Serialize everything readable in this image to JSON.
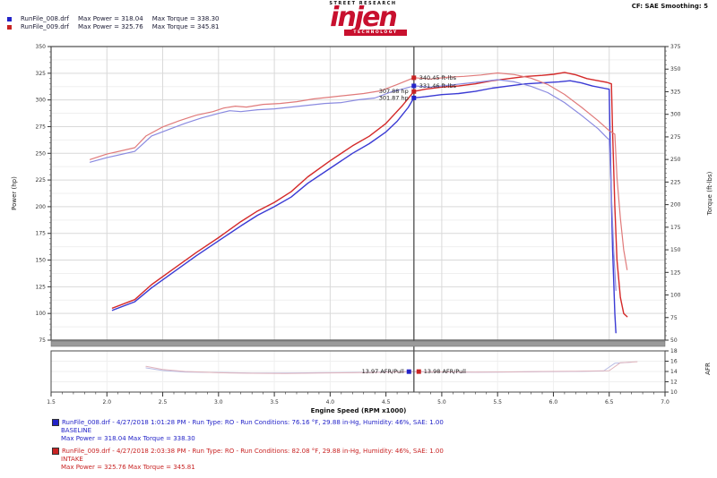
{
  "header": {
    "correction": "CF: SAE   Smoothing: 5",
    "legend": [
      {
        "file": "RunFile_008.drf",
        "power": "Max Power = 318.04",
        "torque": "Max Torque = 338.30",
        "color": "#2323c8"
      },
      {
        "file": "RunFile_009.drf",
        "power": "Max Power = 325.76",
        "torque": "Max Torque = 345.81",
        "color": "#c82323"
      }
    ]
  },
  "logo": {
    "top": "STREET RESEARCH",
    "name": "injen",
    "sub": "TECHNOLOGY"
  },
  "footer": {
    "runs": [
      {
        "color": "#2323c8",
        "line1": "RunFile_008.drf - 4/27/2018 1:01:28 PM - Run Type: RO - Run Conditions: 76.16 °F, 29.88 in-Hg, Humidity: 46%, SAE: 1.00",
        "line2": "BASELINE",
        "line3": "Max Power = 318.04   Max Torque = 338.30"
      },
      {
        "color": "#c82323",
        "line1": "RunFile_009.drf - 4/27/2018 2:03:38 PM - Run Type: RO - Run Conditions: 82.08 °F, 29.88 in-Hg, Humidity: 46%, SAE: 1.00",
        "line2": "INTAKE",
        "line3": "Max Power = 325.76   Max Torque = 345.81"
      }
    ]
  },
  "chart_data": {
    "type": "line",
    "title": "",
    "xlabel": "Engine Speed (RPM x1000)",
    "ylabel_left": "Power (hp)",
    "ylabel_right": "Torque (ft-lbs)",
    "afr_label": "AFR",
    "xlim": [
      1.5,
      7.0
    ],
    "power_lim": [
      75,
      350
    ],
    "torque_lim": [
      50,
      375
    ],
    "afr_lim": [
      10,
      18
    ],
    "x_ticks": [
      1.5,
      2.0,
      2.5,
      3.0,
      3.5,
      4.0,
      4.5,
      5.0,
      5.5,
      6.0,
      6.5,
      7.0
    ],
    "power_ticks": [
      350,
      325,
      300,
      275,
      250,
      225,
      200,
      175,
      150,
      125,
      100,
      75
    ],
    "torque_ticks": [
      375,
      350,
      325,
      300,
      275,
      250,
      225,
      200,
      175,
      150,
      125,
      100,
      75,
      50
    ],
    "afr_ticks": [
      18,
      16,
      14,
      12,
      10
    ],
    "grid": true,
    "legend_position": "top-left",
    "colors": {
      "power_red": "#d42a2a",
      "power_blue": "#3a3ad4",
      "torque_red": "#e07a7a",
      "torque_blue": "#8a8ae0",
      "afr_red": "#e0b4bc",
      "afr_blue": "#b8bce4",
      "cursor": "#6b6b6b",
      "grid_major": "#d9d9d9",
      "grid_minor": "#efefef",
      "border": "#4a4a4a",
      "separator": "#9a9a9a"
    },
    "cursor": {
      "rpm": 4.75,
      "callouts": [
        {
          "name": "torque-red",
          "axis": "torque",
          "value": 340.45,
          "label": "340.45 ft-lbs",
          "side": "right",
          "color": "#c82323"
        },
        {
          "name": "torque-blue",
          "axis": "torque",
          "value": 331.46,
          "label": "331.46 ft-lbs",
          "side": "right",
          "color": "#2323c8"
        },
        {
          "name": "power-red",
          "axis": "power",
          "value": 307.88,
          "label": "307.88 hp",
          "side": "left",
          "color": "#c82323"
        },
        {
          "name": "power-blue",
          "axis": "power",
          "value": 301.87,
          "label": "301.87 hp",
          "side": "left",
          "color": "#2323c8"
        }
      ],
      "afr_callouts": [
        {
          "name": "afr-blue",
          "value": 13.97,
          "label": "13.97 AFR/Pull",
          "side": "left",
          "color": "#2323c8"
        },
        {
          "name": "afr-red",
          "value": 13.98,
          "label": "13.98 AFR/Pull",
          "side": "right",
          "color": "#c82323"
        }
      ]
    },
    "series": [
      {
        "name": "power_red",
        "axis": "power",
        "color_key": "power_red",
        "width": 1.4,
        "points": [
          [
            2.05,
            105
          ],
          [
            2.25,
            113
          ],
          [
            2.4,
            127
          ],
          [
            2.6,
            142
          ],
          [
            2.8,
            157
          ],
          [
            3.0,
            171
          ],
          [
            3.2,
            186
          ],
          [
            3.35,
            196
          ],
          [
            3.5,
            204
          ],
          [
            3.65,
            214
          ],
          [
            3.8,
            228
          ],
          [
            4.0,
            243
          ],
          [
            4.2,
            257
          ],
          [
            4.35,
            266
          ],
          [
            4.5,
            278
          ],
          [
            4.65,
            295
          ],
          [
            4.75,
            307.9
          ],
          [
            4.85,
            310
          ],
          [
            5.0,
            312
          ],
          [
            5.15,
            313
          ],
          [
            5.3,
            315
          ],
          [
            5.45,
            318
          ],
          [
            5.6,
            320
          ],
          [
            5.75,
            322
          ],
          [
            5.9,
            323
          ],
          [
            6.0,
            324
          ],
          [
            6.1,
            325.8
          ],
          [
            6.2,
            323.5
          ],
          [
            6.3,
            320
          ],
          [
            6.4,
            318
          ],
          [
            6.48,
            316.5
          ],
          [
            6.52,
            315
          ],
          [
            6.53,
            270
          ],
          [
            6.55,
            200
          ],
          [
            6.57,
            150
          ],
          [
            6.6,
            115
          ],
          [
            6.63,
            100
          ],
          [
            6.66,
            97
          ]
        ]
      },
      {
        "name": "power_blue",
        "axis": "power",
        "color_key": "power_blue",
        "width": 1.4,
        "points": [
          [
            2.05,
            103
          ],
          [
            2.25,
            111
          ],
          [
            2.4,
            124
          ],
          [
            2.6,
            139
          ],
          [
            2.8,
            154
          ],
          [
            3.0,
            168
          ],
          [
            3.2,
            182
          ],
          [
            3.35,
            192
          ],
          [
            3.5,
            200
          ],
          [
            3.65,
            209
          ],
          [
            3.8,
            222
          ],
          [
            4.0,
            236
          ],
          [
            4.2,
            250
          ],
          [
            4.35,
            259
          ],
          [
            4.5,
            270
          ],
          [
            4.6,
            280
          ],
          [
            4.7,
            293
          ],
          [
            4.75,
            301.9
          ],
          [
            4.85,
            303
          ],
          [
            5.0,
            305
          ],
          [
            5.15,
            306
          ],
          [
            5.3,
            308
          ],
          [
            5.45,
            311
          ],
          [
            5.6,
            313
          ],
          [
            5.75,
            315
          ],
          [
            5.9,
            316
          ],
          [
            6.05,
            317
          ],
          [
            6.15,
            318
          ],
          [
            6.25,
            316
          ],
          [
            6.35,
            313
          ],
          [
            6.45,
            311
          ],
          [
            6.5,
            310
          ],
          [
            6.51,
            250
          ],
          [
            6.53,
            160
          ],
          [
            6.55,
            100
          ],
          [
            6.56,
            82
          ]
        ]
      },
      {
        "name": "torque_red",
        "axis": "torque",
        "color_key": "torque_red",
        "width": 1.2,
        "points": [
          [
            1.85,
            250
          ],
          [
            2.0,
            256
          ],
          [
            2.25,
            263
          ],
          [
            2.35,
            276
          ],
          [
            2.5,
            286
          ],
          [
            2.65,
            293
          ],
          [
            2.8,
            299
          ],
          [
            2.95,
            303
          ],
          [
            3.05,
            307
          ],
          [
            3.15,
            309
          ],
          [
            3.25,
            308
          ],
          [
            3.4,
            311
          ],
          [
            3.55,
            312
          ],
          [
            3.7,
            314
          ],
          [
            3.85,
            317
          ],
          [
            4.0,
            319
          ],
          [
            4.15,
            321
          ],
          [
            4.3,
            323
          ],
          [
            4.45,
            326
          ],
          [
            4.6,
            333
          ],
          [
            4.75,
            340.5
          ],
          [
            4.9,
            339
          ],
          [
            5.05,
            341
          ],
          [
            5.2,
            342
          ],
          [
            5.35,
            343.5
          ],
          [
            5.5,
            345.8
          ],
          [
            5.65,
            344
          ],
          [
            5.8,
            340
          ],
          [
            5.95,
            333
          ],
          [
            6.1,
            322
          ],
          [
            6.25,
            308
          ],
          [
            6.4,
            293
          ],
          [
            6.5,
            282
          ],
          [
            6.55,
            278
          ],
          [
            6.57,
            230
          ],
          [
            6.6,
            185
          ],
          [
            6.63,
            150
          ],
          [
            6.66,
            128
          ]
        ]
      },
      {
        "name": "torque_blue",
        "axis": "torque",
        "color_key": "torque_blue",
        "width": 1.2,
        "points": [
          [
            1.85,
            247
          ],
          [
            2.0,
            252
          ],
          [
            2.25,
            259
          ],
          [
            2.4,
            276
          ],
          [
            2.55,
            283
          ],
          [
            2.7,
            290
          ],
          [
            2.85,
            296
          ],
          [
            3.0,
            301
          ],
          [
            3.1,
            304
          ],
          [
            3.2,
            303
          ],
          [
            3.35,
            305
          ],
          [
            3.5,
            306
          ],
          [
            3.65,
            308
          ],
          [
            3.8,
            310
          ],
          [
            3.95,
            312
          ],
          [
            4.1,
            313
          ],
          [
            4.25,
            316
          ],
          [
            4.4,
            318
          ],
          [
            4.55,
            325
          ],
          [
            4.65,
            328
          ],
          [
            4.75,
            331.5
          ],
          [
            4.9,
            330
          ],
          [
            5.05,
            332
          ],
          [
            5.2,
            334
          ],
          [
            5.35,
            336
          ],
          [
            5.5,
            338.3
          ],
          [
            5.65,
            336
          ],
          [
            5.8,
            331
          ],
          [
            5.95,
            324
          ],
          [
            6.1,
            313
          ],
          [
            6.25,
            299
          ],
          [
            6.4,
            284
          ],
          [
            6.48,
            274
          ],
          [
            6.5,
            272
          ],
          [
            6.52,
            210
          ],
          [
            6.54,
            150
          ],
          [
            6.56,
            105
          ]
        ]
      },
      {
        "name": "afr_blue",
        "axis": "afr",
        "color_key": "afr_blue",
        "width": 1,
        "points": [
          [
            2.35,
            14.7
          ],
          [
            2.5,
            14.2
          ],
          [
            2.7,
            13.9
          ],
          [
            3.0,
            13.8
          ],
          [
            3.3,
            13.7
          ],
          [
            3.6,
            13.7
          ],
          [
            3.9,
            13.75
          ],
          [
            4.2,
            13.8
          ],
          [
            4.5,
            13.9
          ],
          [
            4.75,
            13.97
          ],
          [
            5.0,
            13.9
          ],
          [
            5.3,
            13.85
          ],
          [
            5.6,
            13.9
          ],
          [
            5.9,
            13.95
          ],
          [
            6.2,
            14.0
          ],
          [
            6.45,
            14.1
          ],
          [
            6.55,
            15.6
          ],
          [
            6.7,
            15.8
          ]
        ]
      },
      {
        "name": "afr_red",
        "axis": "afr",
        "color_key": "afr_red",
        "width": 1,
        "points": [
          [
            2.35,
            15.0
          ],
          [
            2.5,
            14.4
          ],
          [
            2.7,
            14.0
          ],
          [
            3.0,
            13.75
          ],
          [
            3.3,
            13.65
          ],
          [
            3.6,
            13.6
          ],
          [
            3.9,
            13.7
          ],
          [
            4.2,
            13.75
          ],
          [
            4.5,
            13.85
          ],
          [
            4.75,
            13.98
          ],
          [
            5.0,
            13.92
          ],
          [
            5.3,
            13.88
          ],
          [
            5.6,
            13.92
          ],
          [
            5.9,
            14.0
          ],
          [
            6.2,
            14.05
          ],
          [
            6.5,
            14.15
          ],
          [
            6.6,
            15.7
          ],
          [
            6.75,
            15.9
          ]
        ]
      }
    ]
  }
}
